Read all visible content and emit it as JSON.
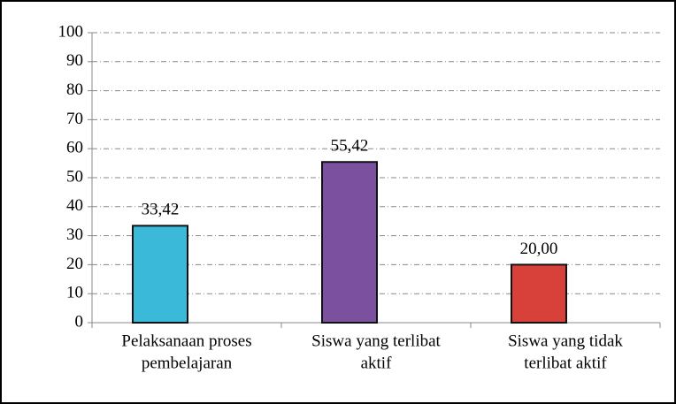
{
  "chart_data": {
    "type": "bar",
    "categories": [
      [
        "Pelaksanaan proses",
        "pembelajaran"
      ],
      [
        "Siswa yang terlibat",
        "aktif"
      ],
      [
        "Siswa yang tidak",
        "terlibat aktif"
      ]
    ],
    "values": [
      33.42,
      55.42,
      20.0
    ],
    "value_labels": [
      "33,42",
      "55,42",
      "20,00"
    ],
    "colors": [
      "#3bb9d9",
      "#7b509f",
      "#d8403a"
    ],
    "ylim": [
      0,
      100
    ],
    "yticks": [
      0,
      10,
      20,
      30,
      40,
      50,
      60,
      70,
      80,
      90,
      100
    ],
    "grid": true
  }
}
